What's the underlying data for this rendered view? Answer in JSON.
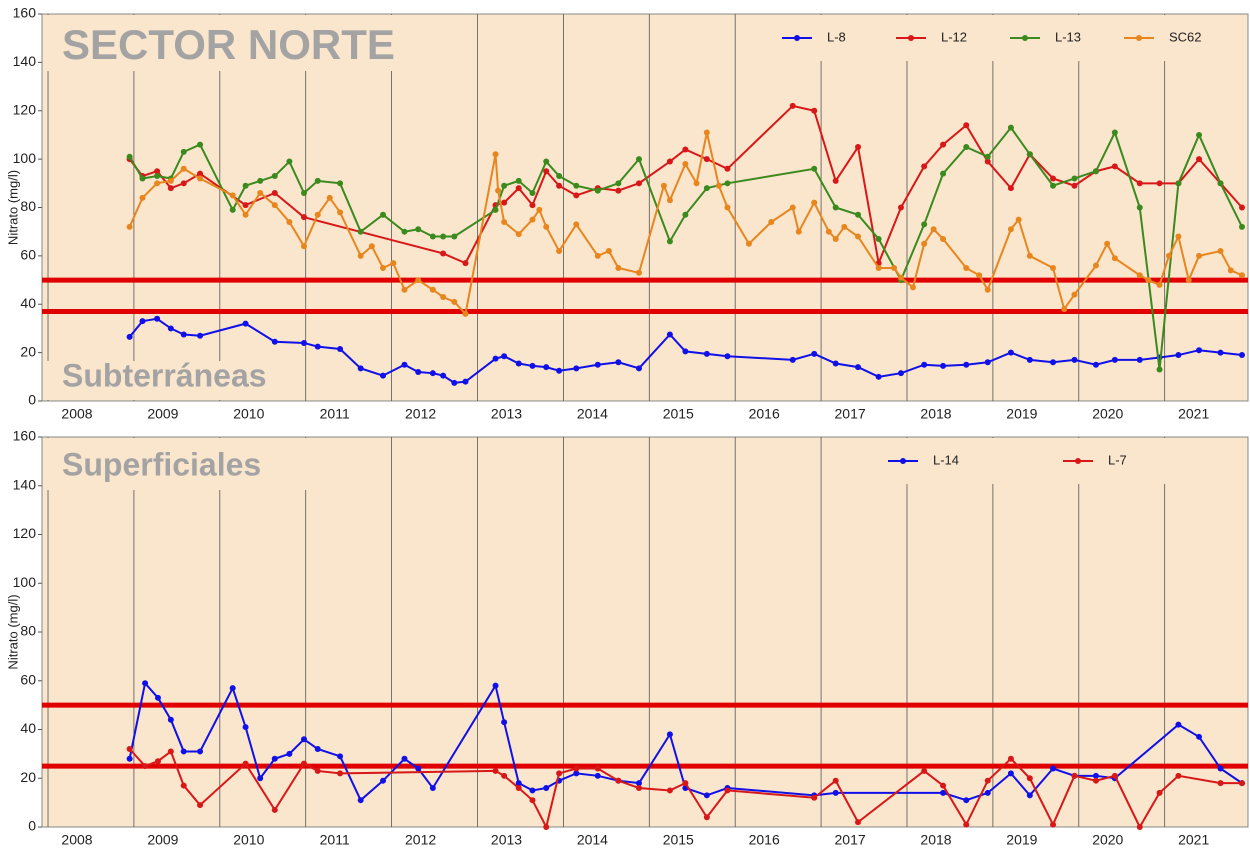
{
  "chart_data": [
    {
      "type": "line",
      "title": "SECTOR NORTE",
      "subtitle": "Subterráneas",
      "ylabel": "Nitrato (mg/l)",
      "xlim": [
        2007.93,
        2021.97
      ],
      "xticks": [
        2008,
        2009,
        2010,
        2011,
        2012,
        2013,
        2014,
        2015,
        2016,
        2017,
        2018,
        2019,
        2020,
        2021
      ],
      "ylim": [
        0,
        160
      ],
      "yticks": [
        0,
        20,
        40,
        60,
        80,
        100,
        120,
        140,
        160
      ],
      "grid": "x",
      "legend": "upper right",
      "hlines": [
        50,
        37
      ],
      "hline_color": "#e00000",
      "series": [
        {
          "name": "L-8",
          "color": "#1010e8",
          "x": [
            2008.95,
            2009.1,
            2009.27,
            2009.43,
            2009.58,
            2009.77,
            2010.3,
            2010.64,
            2010.98,
            2011.14,
            2011.4,
            2011.64,
            2011.9,
            2012.15,
            2012.31,
            2012.48,
            2012.6,
            2012.73,
            2012.86,
            2013.21,
            2013.31,
            2013.48,
            2013.64,
            2013.8,
            2013.95,
            2014.15,
            2014.4,
            2014.64,
            2014.88,
            2015.24,
            2015.42,
            2015.67,
            2015.91,
            2016.67,
            2016.92,
            2017.17,
            2017.43,
            2017.67,
            2017.93,
            2018.2,
            2018.42,
            2018.69,
            2018.94,
            2019.21,
            2019.43,
            2019.7,
            2019.95,
            2020.2,
            2020.42,
            2020.71,
            2020.94,
            2021.16,
            2021.4,
            2021.65,
            2021.9
          ],
          "values": [
            26.5,
            33,
            34,
            30,
            27.5,
            27,
            32,
            24.5,
            24,
            22.5,
            21.5,
            13.5,
            10.5,
            15,
            12,
            11.5,
            10.5,
            7.5,
            8,
            17.5,
            18.5,
            15.5,
            14.5,
            14,
            12.5,
            13.5,
            15,
            16,
            13.5,
            27.5,
            20.5,
            19.5,
            18.5,
            17,
            19.5,
            15.5,
            14,
            10,
            11.5,
            15,
            14.5,
            15,
            16,
            20,
            17,
            16,
            17,
            15,
            17,
            17,
            18,
            19,
            21,
            20,
            19
          ]
        },
        {
          "name": "L-12",
          "color": "#d81818",
          "x": [
            2008.95,
            2009.1,
            2009.27,
            2009.43,
            2009.58,
            2009.77,
            2010.3,
            2010.64,
            2010.98,
            2012.6,
            2012.86,
            2013.21,
            2013.31,
            2013.48,
            2013.64,
            2013.8,
            2013.95,
            2014.15,
            2014.4,
            2014.64,
            2014.88,
            2015.24,
            2015.42,
            2015.67,
            2015.91,
            2016.67,
            2016.92,
            2017.17,
            2017.43,
            2017.67,
            2017.93,
            2018.2,
            2018.42,
            2018.69,
            2018.94,
            2019.21,
            2019.43,
            2019.7,
            2019.95,
            2020.2,
            2020.42,
            2020.71,
            2020.94,
            2021.16,
            2021.4,
            2021.65,
            2021.9
          ],
          "values": [
            100,
            93,
            95,
            88,
            90,
            94,
            81,
            86,
            76,
            61,
            57,
            81,
            82,
            88,
            81,
            95,
            89,
            85,
            88,
            87,
            90,
            99,
            104,
            100,
            96,
            122,
            120,
            91,
            105,
            57,
            80,
            97,
            106,
            114,
            99,
            88,
            102,
            92,
            89,
            95,
            97,
            90,
            90,
            90,
            100,
            90,
            80
          ]
        },
        {
          "name": "L-13",
          "color": "#3a8a1e",
          "x": [
            2008.95,
            2009.1,
            2009.27,
            2009.43,
            2009.58,
            2009.77,
            2010.15,
            2010.3,
            2010.47,
            2010.64,
            2010.81,
            2010.98,
            2011.14,
            2011.4,
            2011.64,
            2011.9,
            2012.15,
            2012.31,
            2012.48,
            2012.6,
            2012.73,
            2013.21,
            2013.31,
            2013.48,
            2013.64,
            2013.8,
            2013.95,
            2014.15,
            2014.4,
            2014.64,
            2014.88,
            2015.24,
            2015.42,
            2015.67,
            2015.91,
            2016.92,
            2017.17,
            2017.43,
            2017.67,
            2017.93,
            2018.2,
            2018.42,
            2018.69,
            2018.94,
            2019.21,
            2019.43,
            2019.7,
            2019.95,
            2020.2,
            2020.42,
            2020.71,
            2020.94,
            2021.16,
            2021.4,
            2021.65,
            2021.9
          ],
          "values": [
            101,
            92,
            93,
            92,
            103,
            106,
            79,
            89,
            91,
            93,
            99,
            86,
            91,
            90,
            70,
            77,
            70,
            71,
            68,
            68,
            68,
            79,
            89,
            91,
            86,
            99,
            93,
            89,
            87,
            90,
            100,
            66,
            77,
            88,
            90,
            96,
            80,
            77,
            67,
            50,
            73,
            94,
            105,
            101,
            113,
            102,
            89,
            92,
            95,
            111,
            80,
            13,
            90,
            110,
            90,
            72
          ]
        },
        {
          "name": "SC62",
          "color": "#e8861e",
          "x": [
            2008.95,
            2009.1,
            2009.27,
            2009.43,
            2009.58,
            2009.77,
            2010.15,
            2010.3,
            2010.47,
            2010.64,
            2010.81,
            2010.98,
            2011.14,
            2011.28,
            2011.4,
            2011.64,
            2011.77,
            2011.9,
            2012.02,
            2012.15,
            2012.31,
            2012.48,
            2012.6,
            2012.73,
            2012.86,
            2013.21,
            2013.24,
            2013.31,
            2013.48,
            2013.64,
            2013.72,
            2013.8,
            2013.95,
            2014.15,
            2014.4,
            2014.53,
            2014.64,
            2014.88,
            2015.17,
            2015.24,
            2015.42,
            2015.55,
            2015.67,
            2015.81,
            2015.91,
            2016.16,
            2016.42,
            2016.67,
            2016.74,
            2016.92,
            2017.09,
            2017.17,
            2017.27,
            2017.43,
            2017.67,
            2017.85,
            2017.93,
            2018.07,
            2018.2,
            2018.31,
            2018.42,
            2018.69,
            2018.84,
            2018.94,
            2019.21,
            2019.3,
            2019.43,
            2019.7,
            2019.83,
            2019.95,
            2020.2,
            2020.33,
            2020.42,
            2020.71,
            2020.81,
            2020.94,
            2021.05,
            2021.16,
            2021.28,
            2021.4,
            2021.65,
            2021.77,
            2021.9
          ],
          "values": [
            72,
            84,
            90,
            91,
            96,
            92,
            85,
            77,
            86,
            81,
            74,
            64,
            77,
            84,
            78,
            60,
            64,
            55,
            57,
            46,
            50,
            46,
            43,
            41,
            36,
            102,
            87,
            74,
            69,
            75,
            79,
            72,
            62,
            73,
            60,
            62,
            55,
            53,
            89,
            83,
            98,
            90,
            111,
            89,
            80,
            65,
            74,
            80,
            70,
            82,
            70,
            67,
            72,
            68,
            55,
            55,
            51,
            47,
            65,
            71,
            67,
            55,
            52,
            46,
            71,
            75,
            60,
            55,
            38,
            44,
            56,
            65,
            59,
            52,
            50,
            48,
            60,
            68,
            50,
            60,
            62,
            54,
            52
          ]
        }
      ]
    },
    {
      "type": "line",
      "title": "Superficiales",
      "ylabel": "Nitrato (mg/l)",
      "xlim": [
        2007.93,
        2021.97
      ],
      "xticks": [
        2008,
        2009,
        2010,
        2011,
        2012,
        2013,
        2014,
        2015,
        2016,
        2017,
        2018,
        2019,
        2020,
        2021
      ],
      "ylim": [
        0,
        160
      ],
      "yticks": [
        0,
        20,
        40,
        60,
        80,
        100,
        120,
        140,
        160
      ],
      "grid": "x",
      "legend": "upper right",
      "hlines": [
        50,
        25
      ],
      "hline_color": "#e00000",
      "series": [
        {
          "name": "L-14",
          "color": "#1010e8",
          "x": [
            2008.95,
            2009.13,
            2009.28,
            2009.43,
            2009.58,
            2009.77,
            2010.15,
            2010.3,
            2010.47,
            2010.64,
            2010.81,
            2010.98,
            2011.14,
            2011.4,
            2011.64,
            2011.9,
            2012.15,
            2012.31,
            2012.48,
            2013.21,
            2013.31,
            2013.48,
            2013.64,
            2013.8,
            2013.95,
            2014.15,
            2014.4,
            2014.64,
            2014.88,
            2015.24,
            2015.42,
            2015.67,
            2015.91,
            2016.92,
            2017.17,
            2018.42,
            2018.69,
            2018.94,
            2019.21,
            2019.43,
            2019.7,
            2019.95,
            2020.2,
            2020.42,
            2021.16,
            2021.4,
            2021.65,
            2021.9
          ],
          "values": [
            28,
            59,
            53,
            44,
            31,
            31,
            57,
            41,
            20,
            28,
            30,
            36,
            32,
            29,
            11,
            19,
            28,
            24,
            16,
            58,
            43,
            18,
            15,
            16,
            19,
            22,
            21,
            19,
            18,
            38,
            16,
            13,
            16,
            13,
            14,
            14,
            11,
            14,
            22,
            13,
            24,
            21,
            21,
            20,
            42,
            37,
            24,
            18
          ]
        },
        {
          "name": "L-7",
          "color": "#d81818",
          "x": [
            2008.95,
            2009.13,
            2009.28,
            2009.43,
            2009.58,
            2009.77,
            2010.3,
            2010.64,
            2010.98,
            2011.14,
            2011.4,
            2013.21,
            2013.31,
            2013.48,
            2013.64,
            2013.8,
            2013.95,
            2014.15,
            2014.4,
            2014.64,
            2014.88,
            2015.24,
            2015.42,
            2015.67,
            2015.91,
            2016.92,
            2017.17,
            2017.43,
            2018.2,
            2018.42,
            2018.69,
            2018.94,
            2019.21,
            2019.43,
            2019.7,
            2019.95,
            2020.2,
            2020.42,
            2020.71,
            2020.94,
            2021.16,
            2021.65,
            2021.9
          ],
          "values": [
            32,
            25,
            27,
            31,
            17,
            9,
            26,
            7,
            26,
            23,
            22,
            23,
            21,
            16,
            11,
            0,
            22,
            24,
            24,
            19,
            16,
            15,
            18,
            4,
            15,
            12,
            19,
            2,
            23,
            17,
            1,
            19,
            28,
            20,
            1,
            21,
            19,
            21,
            0,
            14,
            21,
            18,
            18
          ]
        }
      ]
    }
  ]
}
